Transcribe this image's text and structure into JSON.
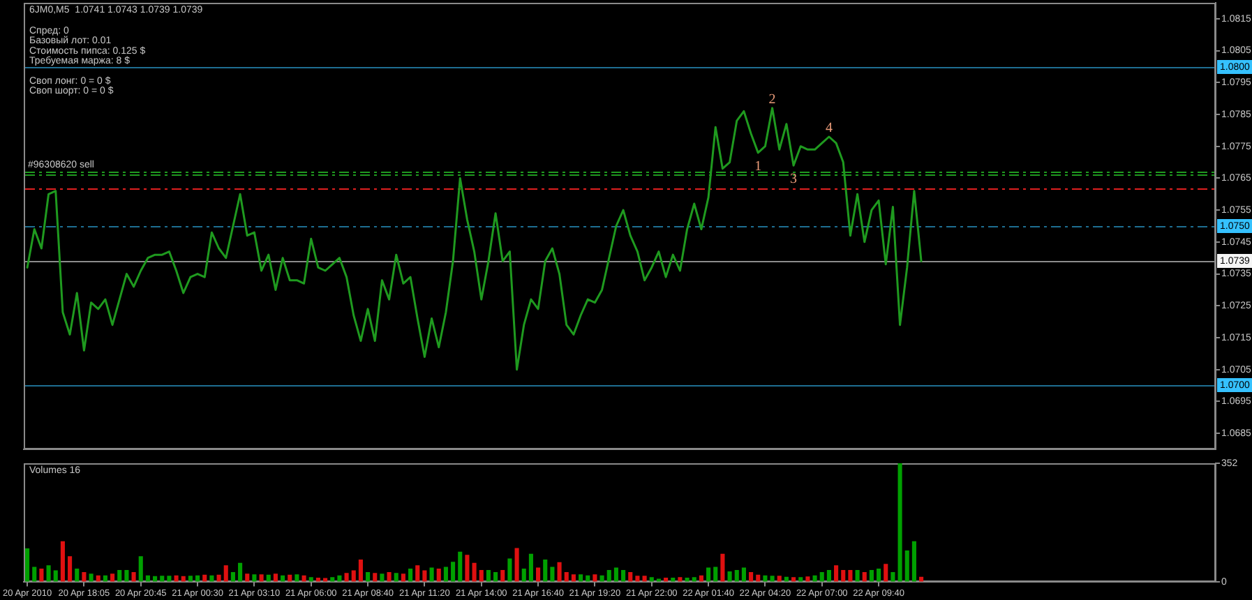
{
  "chart_data": [
    {
      "type": "line",
      "title": "6JM0,M5  1.0741 1.0743 1.0739 1.0739",
      "annotations": [
        "Спред: 0",
        "Базовый лот: 0.01",
        "Стоимость пипса: 0.125 $",
        "Требуемая маржа: 8 $",
        "Своп лонг: 0 = 0 $",
        "Своп шорт: 0 = 0 $",
        {
          "text": "#96308620 sell",
          "y": 1.0767
        },
        {
          "text": "1",
          "y": 1.0773
        },
        {
          "text": "2",
          "y": 1.0787
        },
        {
          "text": "3",
          "y": 1.0769
        },
        {
          "text": "4",
          "y": 1.0778
        }
      ],
      "categories": [
        null,
        null,
        null,
        null,
        null,
        null,
        null,
        null,
        null,
        null,
        null,
        null,
        null,
        null,
        null,
        null,
        null,
        null,
        null,
        null,
        null,
        null,
        null,
        null,
        null,
        null,
        null,
        null,
        null,
        null,
        null,
        null,
        null,
        null,
        null,
        null,
        null,
        null,
        null,
        null,
        null,
        null,
        null,
        null,
        null,
        null,
        null,
        null,
        null,
        null,
        null,
        null,
        null,
        null,
        null,
        null,
        null,
        null,
        null,
        null,
        null,
        null,
        null,
        null,
        null,
        null,
        null,
        null,
        null,
        null,
        null,
        null,
        null,
        null,
        null,
        null,
        null,
        null,
        null,
        null,
        null,
        null,
        null,
        null,
        null,
        null,
        null,
        null,
        null,
        null,
        null,
        null,
        null,
        null,
        null,
        null,
        null,
        null,
        null,
        null,
        null,
        null,
        null,
        null,
        null,
        null,
        null,
        null,
        null,
        null,
        null,
        null,
        null,
        null,
        null,
        null,
        null,
        null,
        null,
        null,
        null,
        null,
        null,
        null,
        null,
        null,
        null,
        null,
        null,
        null,
        null,
        null,
        null,
        null,
        null,
        null,
        null,
        null,
        null,
        null,
        null,
        null,
        null,
        null,
        null,
        null,
        null,
        null,
        null,
        null,
        null,
        null,
        null,
        null,
        null,
        null,
        null,
        null,
        null,
        null,
        null,
        null,
        null,
        null,
        null,
        null,
        null,
        null
      ],
      "values": [
        1.0737,
        1.0749,
        1.0743,
        1.076,
        1.0761,
        1.0723,
        1.0716,
        1.0729,
        1.0711,
        1.0726,
        1.0724,
        1.0727,
        1.0719,
        1.0727,
        1.0735,
        1.0731,
        1.0736,
        1.074,
        1.0741,
        1.0741,
        1.0742,
        1.0736,
        1.0729,
        1.0734,
        1.0735,
        1.0734,
        1.0748,
        1.0743,
        1.074,
        1.075,
        1.076,
        1.0747,
        1.0748,
        1.0736,
        1.0741,
        1.073,
        1.074,
        1.0733,
        1.0733,
        1.0732,
        1.0746,
        1.0737,
        1.0736,
        1.0738,
        1.074,
        1.0734,
        1.0722,
        1.0714,
        1.0724,
        1.0714,
        1.0733,
        1.0727,
        1.0741,
        1.0732,
        1.0734,
        1.0721,
        1.0709,
        1.0721,
        1.0712,
        1.0723,
        1.0739,
        1.0765,
        1.0752,
        1.0742,
        1.0727,
        1.0739,
        1.0754,
        1.0739,
        1.0742,
        1.0705,
        1.0719,
        1.0727,
        1.0724,
        1.0739,
        1.0743,
        1.0735,
        1.0719,
        1.0716,
        1.0722,
        1.0727,
        1.0726,
        1.073,
        1.074,
        1.075,
        1.0755,
        1.0747,
        1.0742,
        1.0733,
        1.0737,
        1.0742,
        1.0734,
        1.0741,
        1.0736,
        1.0749,
        1.0757,
        1.0749,
        1.0759,
        1.0781,
        1.0768,
        1.077,
        1.0783,
        1.0786,
        1.0779,
        1.0773,
        1.0775,
        1.0787,
        1.0774,
        1.0782,
        1.0769,
        1.0775,
        1.0774,
        1.0774,
        1.0776,
        1.0778,
        1.0776,
        1.077,
        1.0747,
        1.076,
        1.0745,
        1.0755,
        1.0758,
        1.0738,
        1.0756,
        1.0719,
        1.0737,
        1.0761,
        1.0739,
        null,
        null,
        null,
        null,
        null,
        null,
        null,
        null,
        null,
        null,
        null,
        null,
        null,
        null,
        null,
        null,
        null,
        null,
        null,
        null,
        null,
        null,
        null,
        null,
        null,
        null,
        null,
        null,
        null,
        null,
        null,
        null,
        null,
        null,
        null,
        null,
        null,
        null,
        null,
        null,
        null
      ],
      "color": "#1f9a1f",
      "marker": "none",
      "ylim": [
        1.068,
        1.082
      ],
      "yticks": [
        1.0685,
        1.0695,
        1.0705,
        1.0715,
        1.0725,
        1.0735,
        1.0745,
        1.0755,
        1.0765,
        1.0775,
        1.0785,
        1.0795,
        1.0805,
        1.0815
      ],
      "ref_lines": [
        {
          "axis": "y",
          "value": 1.08,
          "label": "1.0800",
          "color": "#1e6e92",
          "line_style": "solid"
        },
        {
          "axis": "y",
          "value": 1.0767,
          "color": "#1f9a1f",
          "line_style": "dashed"
        },
        {
          "axis": "y",
          "value": 1.0766,
          "color": "#1f9a1f",
          "line_style": "dashed"
        },
        {
          "axis": "y",
          "value": 1.0762,
          "color": "#e02020",
          "line_style": "dashed"
        },
        {
          "axis": "y",
          "value": 1.075,
          "label": "1.0750",
          "color": "#1e6e92",
          "line_style": "dashed"
        },
        {
          "axis": "y",
          "value": 1.0739,
          "label": "1.0739",
          "color": "#8c8c8c",
          "line_style": "solid"
        },
        {
          "axis": "y",
          "value": 1.07,
          "label": "1.0700",
          "color": "#1e6e92",
          "line_style": "solid"
        }
      ]
    },
    {
      "type": "bar",
      "title": "Volumes 16",
      "categories": [
        "20 Apr 2010",
        null,
        null,
        null,
        null,
        null,
        null,
        null,
        "20 Apr 18:05",
        null,
        null,
        null,
        null,
        null,
        null,
        null,
        "20 Apr 20:45",
        null,
        null,
        null,
        null,
        null,
        null,
        null,
        "21 Apr 00:30",
        null,
        null,
        null,
        null,
        null,
        null,
        null,
        "21 Apr 03:10",
        null,
        null,
        null,
        null,
        null,
        null,
        null,
        "21 Apr 06:00",
        null,
        null,
        null,
        null,
        null,
        null,
        null,
        "21 Apr 08:40",
        null,
        null,
        null,
        null,
        null,
        null,
        null,
        "21 Apr 11:20",
        null,
        null,
        null,
        null,
        null,
        null,
        null,
        "21 Apr 14:00",
        null,
        null,
        null,
        null,
        null,
        null,
        null,
        "21 Apr 16:40",
        null,
        null,
        null,
        null,
        null,
        null,
        null,
        "21 Apr 19:20",
        null,
        null,
        null,
        null,
        null,
        null,
        null,
        "21 Apr 22:00",
        null,
        null,
        null,
        null,
        null,
        null,
        null,
        "22 Apr 01:40",
        null,
        null,
        null,
        null,
        null,
        null,
        null,
        "22 Apr 04:20",
        null,
        null,
        null,
        null,
        null,
        null,
        null,
        "22 Apr 07:00",
        null,
        null,
        null,
        null,
        null,
        null,
        null,
        "22 Apr 09:40",
        null,
        null,
        null,
        null,
        null,
        null,
        null,
        null,
        null,
        null,
        null,
        null,
        null,
        null,
        null,
        null,
        null,
        null,
        null,
        null,
        null,
        null,
        null,
        null,
        null,
        null,
        null,
        null,
        null,
        null,
        null,
        null,
        null,
        null,
        null,
        null,
        null,
        null,
        null,
        null,
        null,
        null,
        null,
        null,
        null,
        null,
        null
      ],
      "values": [
        100,
        45,
        40,
        50,
        35,
        121,
        77,
        40,
        30,
        25,
        20,
        20,
        25,
        36,
        36,
        30,
        77,
        20,
        18,
        19,
        19,
        20,
        18,
        19,
        20,
        22,
        20,
        22,
        50,
        30,
        57,
        25,
        23,
        23,
        22,
        25,
        20,
        22,
        23,
        20,
        15,
        13,
        12,
        15,
        20,
        27,
        35,
        67,
        30,
        27,
        25,
        30,
        27,
        25,
        40,
        50,
        35,
        43,
        40,
        45,
        60,
        90,
        81,
        57,
        36,
        36,
        30,
        36,
        70,
        101,
        40,
        84,
        43,
        67,
        45,
        59,
        30,
        23,
        23,
        20,
        23,
        20,
        36,
        43,
        36,
        30,
        19,
        19,
        15,
        10,
        13,
        13,
        15,
        13,
        15,
        20,
        43,
        45,
        84,
        32,
        36,
        43,
        30,
        22,
        20,
        19,
        19,
        16,
        15,
        15,
        17,
        20,
        30,
        36,
        50,
        36,
        36,
        36,
        30,
        36,
        40,
        54,
        30,
        352,
        94,
        121,
        16,
        null,
        null,
        null,
        null,
        null,
        null,
        null,
        null,
        null,
        null,
        null,
        null,
        null,
        null,
        null,
        null,
        null,
        null,
        null,
        null,
        null,
        null,
        null,
        null,
        null,
        null,
        null,
        null,
        null,
        null,
        null,
        null,
        null,
        null,
        null,
        null,
        null,
        null,
        null,
        null,
        null
      ],
      "colors": [
        "#00a000",
        "#00a000",
        "#e01010",
        "#00a000",
        "#00a000",
        "#e01010",
        "#e01010",
        "#00a000",
        "#e01010",
        "#00a000",
        "#e01010",
        "#00a000",
        "#e01010",
        "#00a000",
        "#00a000",
        "#e01010",
        "#00a000",
        "#00a000",
        "#00a000",
        "#00a000",
        "#00a000",
        "#e01010",
        "#e01010",
        "#00a000",
        "#00a000",
        "#e01010",
        "#00a000",
        "#e01010",
        "#e01010",
        "#00a000",
        "#00a000",
        "#e01010",
        "#00a000",
        "#e01010",
        "#00a000",
        "#e01010",
        "#00a000",
        "#e01010",
        "#00a000",
        "#e01010",
        "#00a000",
        "#e01010",
        "#e01010",
        "#00a000",
        "#00a000",
        "#e01010",
        "#e01010",
        "#e01010",
        "#00a000",
        "#e01010",
        "#00a000",
        "#e01010",
        "#00a000",
        "#e01010",
        "#00a000",
        "#e01010",
        "#e01010",
        "#00a000",
        "#e01010",
        "#00a000",
        "#00a000",
        "#00a000",
        "#e01010",
        "#e01010",
        "#e01010",
        "#00a000",
        "#00a000",
        "#e01010",
        "#00a000",
        "#e01010",
        "#00a000",
        "#00a000",
        "#e01010",
        "#00a000",
        "#00a000",
        "#e01010",
        "#e01010",
        "#e01010",
        "#00a000",
        "#00a000",
        "#e01010",
        "#00a000",
        "#00a000",
        "#00a000",
        "#00a000",
        "#e01010",
        "#e01010",
        "#e01010",
        "#00a000",
        "#00a000",
        "#e01010",
        "#00a000",
        "#e01010",
        "#00a000",
        "#00a000",
        "#e01010",
        "#00a000",
        "#00a000",
        "#e01010",
        "#00a000",
        "#00a000",
        "#00a000",
        "#e01010",
        "#e01010",
        "#00a000",
        "#00a000",
        "#e01010",
        "#00a000",
        "#e01010",
        "#00a000",
        "#e01010",
        "#00a000",
        "#00a000",
        "#00a000",
        "#e01010",
        "#e01010",
        "#e01010",
        "#00a000",
        "#e01010",
        "#00a000",
        "#00a000",
        "#e01010",
        "#00a000",
        "#00a000",
        "#00a000",
        "#00a000",
        "#e01010",
        null,
        null,
        null,
        null,
        null,
        null,
        null,
        null,
        null,
        null,
        null,
        null,
        null,
        null,
        null,
        null,
        null,
        null,
        null,
        null,
        null,
        null,
        null,
        null,
        null,
        null,
        null,
        null,
        null,
        null,
        null,
        null,
        null,
        null,
        null,
        null,
        null,
        null,
        null,
        null,
        null
      ],
      "ylim": [
        0,
        352
      ],
      "yticks": [
        0,
        352
      ]
    }
  ]
}
